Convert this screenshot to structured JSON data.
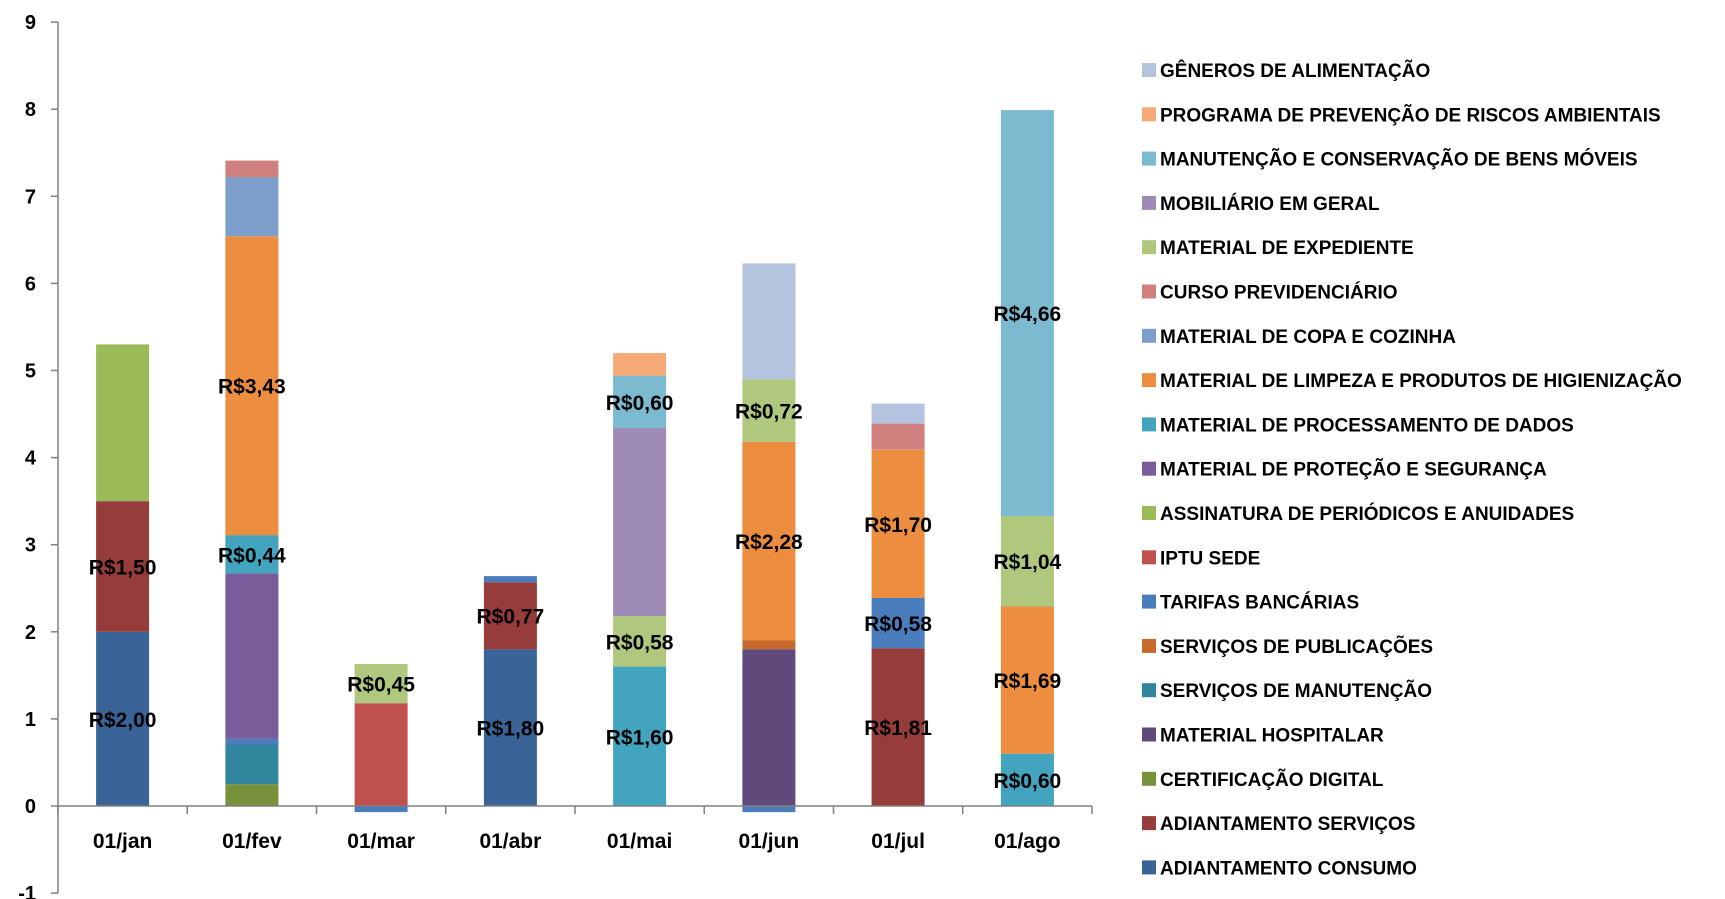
{
  "chart_data": {
    "type": "bar",
    "stacked": true,
    "categories": [
      "01/jan",
      "01/fev",
      "01/mar",
      "01/abr",
      "01/mai",
      "01/jun",
      "01/jul",
      "01/ago"
    ],
    "ylim": [
      -1,
      9
    ],
    "yticks": [
      "-1",
      "0",
      "1",
      "2",
      "3",
      "4",
      "5",
      "6",
      "7",
      "8",
      "9"
    ],
    "grid": false,
    "legend_position": "right",
    "series": [
      {
        "name": "ADIANTAMENTO CONSUMO",
        "color": "#3a6498",
        "values": [
          2.0,
          0,
          0,
          1.8,
          0,
          0,
          0,
          0
        ],
        "labels": [
          "R$2,00",
          "",
          "",
          "R$1,80",
          "",
          "",
          "",
          ""
        ]
      },
      {
        "name": "ADIANTAMENTO SERVIÇOS",
        "color": "#963c3b",
        "values": [
          1.5,
          0,
          0,
          0.77,
          0,
          0,
          1.81,
          0
        ],
        "labels": [
          "R$1,50",
          "",
          "",
          "R$0,77",
          "",
          "",
          "R$1,81",
          ""
        ]
      },
      {
        "name": "CERTIFICAÇÃO DIGITAL",
        "color": "#77923b",
        "values": [
          0,
          0.25,
          0,
          0,
          0,
          0,
          0,
          0
        ],
        "labels": [
          "",
          "",
          "",
          "",
          "",
          "",
          "",
          ""
        ]
      },
      {
        "name": "MATERIAL HOSPITALAR",
        "color": "#5f4a7b",
        "values": [
          0,
          0,
          0,
          0,
          0,
          1.8,
          0,
          0
        ],
        "labels": [
          "",
          "",
          "",
          "",
          "",
          "",
          "",
          ""
        ]
      },
      {
        "name": "SERVIÇOS DE MANUTENÇÃO",
        "color": "#31859c",
        "values": [
          0,
          0.45,
          0,
          0,
          0,
          0,
          0,
          0
        ],
        "labels": [
          "",
          "",
          "",
          "",
          "",
          "",
          "",
          ""
        ]
      },
      {
        "name": "SERVIÇOS DE PUBLICAÇÕES",
        "color": "#c8692e",
        "values": [
          0,
          0,
          0,
          0,
          0,
          0.1,
          0,
          0
        ],
        "labels": [
          "",
          "",
          "",
          "",
          "",
          "",
          "",
          ""
        ]
      },
      {
        "name": "TARIFAS BANCÁRIAS",
        "color": "#4a7dbb",
        "values": [
          0,
          0.07,
          -0.07,
          0.07,
          0,
          -0.07,
          0.58,
          0
        ],
        "labels": [
          "",
          "",
          "",
          "",
          "",
          "",
          "R$0,58",
          ""
        ]
      },
      {
        "name": "IPTU SEDE",
        "color": "#c0504d",
        "values": [
          0,
          0,
          1.18,
          0,
          0,
          0,
          0,
          0
        ],
        "labels": [
          "",
          "",
          "",
          "",
          "",
          "",
          "",
          ""
        ]
      },
      {
        "name": "ASSINATURA DE PERIÓDICOS E ANUIDADES",
        "color": "#9bbb59",
        "values": [
          1.8,
          0,
          0,
          0,
          0,
          0,
          0,
          0
        ],
        "labels": [
          "",
          "",
          "",
          "",
          "",
          "",
          "",
          ""
        ]
      },
      {
        "name": "MATERIAL DE PROTEÇÃO E SEGURANÇA",
        "color": "#7b5c9a",
        "values": [
          0,
          1.9,
          0,
          0,
          0,
          0,
          0,
          0
        ],
        "labels": [
          "",
          "",
          "",
          "",
          "",
          "",
          "",
          ""
        ]
      },
      {
        "name": "MATERIAL DE PROCESSAMENTO DE DADOS",
        "color": "#43a4bf",
        "values": [
          0,
          0.44,
          0,
          0,
          1.6,
          0,
          0,
          0.6
        ],
        "labels": [
          "",
          "R$0,44",
          "",
          "",
          "R$1,60",
          "",
          "",
          "R$0,60"
        ]
      },
      {
        "name": "MATERIAL DE LIMPEZA E PRODUTOS DE HIGIENIZAÇÃO",
        "color": "#ec8d40",
        "values": [
          0,
          3.43,
          0,
          0,
          0,
          2.28,
          1.7,
          1.69
        ],
        "labels": [
          "",
          "R$3,43",
          "",
          "",
          "",
          "R$2,28",
          "R$1,70",
          "R$1,69"
        ]
      },
      {
        "name": "MATERIAL DE COPA E COZINHA",
        "color": "#7d9dca",
        "values": [
          0,
          0.68,
          0,
          0,
          0,
          0,
          0,
          0
        ],
        "labels": [
          "",
          "",
          "",
          "",
          "",
          "",
          "",
          ""
        ]
      },
      {
        "name": "CURSO PREVIDENCIÁRIO",
        "color": "#cf7f7d",
        "values": [
          0,
          0.19,
          0,
          0,
          0,
          0,
          0.3,
          0
        ],
        "labels": [
          "",
          "",
          "",
          "",
          "",
          "",
          "",
          ""
        ]
      },
      {
        "name": "MATERIAL DE EXPEDIENTE",
        "color": "#afc87e",
        "values": [
          0,
          0,
          0.45,
          0,
          0.58,
          0.72,
          0,
          1.04
        ],
        "labels": [
          "",
          "",
          "R$0,45",
          "",
          "R$0,58",
          "R$0,72",
          "",
          "R$1,04"
        ]
      },
      {
        "name": "MOBILIÁRIO EM GERAL",
        "color": "#9e8cb7",
        "values": [
          0,
          0,
          0,
          0,
          2.16,
          0,
          0,
          0
        ],
        "labels": [
          "",
          "",
          "",
          "",
          "",
          "",
          "",
          ""
        ]
      },
      {
        "name": "MANUTENÇÃO E CONSERVAÇÃO DE BENS MÓVEIS",
        "color": "#7cbad0",
        "values": [
          0,
          0,
          0,
          0,
          0.6,
          0,
          0,
          4.66
        ],
        "labels": [
          "",
          "",
          "",
          "",
          "R$0,60",
          "",
          "",
          "R$4,66"
        ]
      },
      {
        "name": "PROGRAMA DE PREVENÇÃO DE RISCOS AMBIENTAIS",
        "color": "#f6aa77",
        "values": [
          0,
          0,
          0,
          0,
          0.26,
          0,
          0,
          0
        ],
        "labels": [
          "",
          "",
          "",
          "",
          "",
          "",
          "",
          ""
        ]
      },
      {
        "name": "GÊNEROS DE ALIMENTAÇÃO",
        "color": "#b5c4de",
        "values": [
          0,
          0,
          0,
          0,
          0,
          1.33,
          0.23,
          0
        ],
        "labels": [
          "",
          "",
          "",
          "",
          "",
          "",
          "",
          ""
        ]
      }
    ],
    "legend_order": [
      "GÊNEROS DE ALIMENTAÇÃO",
      "PROGRAMA DE PREVENÇÃO DE RISCOS AMBIENTAIS",
      "MANUTENÇÃO E CONSERVAÇÃO DE BENS MÓVEIS",
      "MOBILIÁRIO EM GERAL",
      "MATERIAL DE EXPEDIENTE",
      "CURSO PREVIDENCIÁRIO",
      "MATERIAL DE COPA E COZINHA",
      "MATERIAL DE LIMPEZA E PRODUTOS DE HIGIENIZAÇÃO",
      "MATERIAL DE PROCESSAMENTO DE DADOS",
      "MATERIAL DE PROTEÇÃO E SEGURANÇA",
      "ASSINATURA DE PERIÓDICOS E ANUIDADES",
      "IPTU SEDE",
      "TARIFAS BANCÁRIAS",
      "SERVIÇOS DE PUBLICAÇÕES",
      "SERVIÇOS DE MANUTENÇÃO",
      "MATERIAL HOSPITALAR",
      "CERTIFICAÇÃO DIGITAL",
      "ADIANTAMENTO SERVIÇOS",
      "ADIANTAMENTO CONSUMO"
    ]
  }
}
